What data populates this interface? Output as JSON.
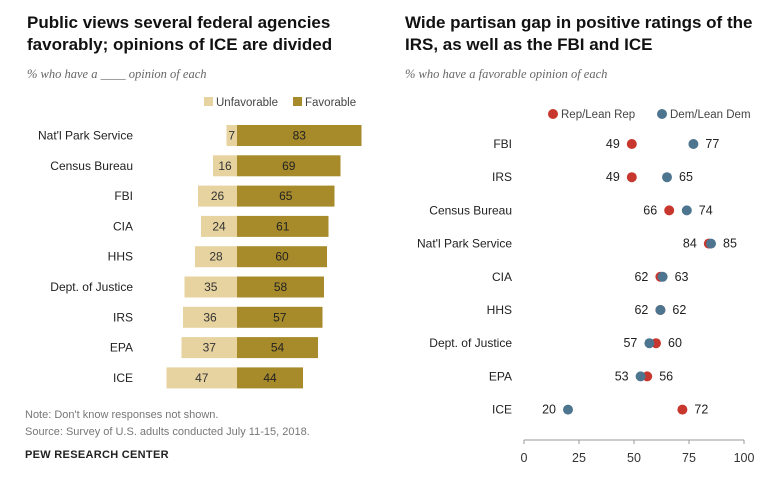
{
  "left": {
    "title": "Public views several federal agencies favorably; opinions of ICE are divided",
    "subtitle": "% who have a ____ opinion of each"
  },
  "right": {
    "title": "Wide partisan gap in positive ratings of the IRS, as well as the FBI and ICE",
    "subtitle": "% who have a favorable opinion of each"
  },
  "note": "Note: Don't know responses not shown.",
  "source": "Source: Survey of U.S. adults conducted July 11-15, 2018.",
  "brand": "PEW RESEARCH CENTER",
  "colors": {
    "unfavorable": "#e6d3a0",
    "favorable": "#a78b2b",
    "rep": "#c8372d",
    "dem": "#4e7590",
    "axis": "#999999",
    "label": "#222222"
  },
  "chart_data": [
    {
      "type": "bar",
      "orientation": "horizontal-diverging",
      "categories": [
        "Nat'l Park Service",
        "Census Bureau",
        "FBI",
        "CIA",
        "HHS",
        "Dept. of Justice",
        "IRS",
        "EPA",
        "ICE"
      ],
      "series": [
        {
          "name": "Unfavorable",
          "values": [
            7,
            16,
            26,
            24,
            28,
            35,
            36,
            37,
            47
          ]
        },
        {
          "name": "Favorable",
          "values": [
            83,
            69,
            65,
            61,
            60,
            58,
            57,
            54,
            44
          ]
        }
      ],
      "legend": "top-right"
    },
    {
      "type": "scatter",
      "style": "dot-plot",
      "categories": [
        "FBI",
        "IRS",
        "Census Bureau",
        "Nat'l Park Service",
        "CIA",
        "HHS",
        "Dept. of Justice",
        "EPA",
        "ICE"
      ],
      "series": [
        {
          "name": "Rep/Lean Rep",
          "values": [
            49,
            49,
            66,
            84,
            62,
            62,
            60,
            56,
            72
          ]
        },
        {
          "name": "Dem/Lean Dem",
          "values": [
            77,
            65,
            74,
            85,
            63,
            62,
            57,
            53,
            20
          ]
        }
      ],
      "xlim": [
        0,
        100
      ],
      "xticks": [
        0,
        25,
        50,
        75,
        100
      ],
      "legend": "top"
    }
  ]
}
